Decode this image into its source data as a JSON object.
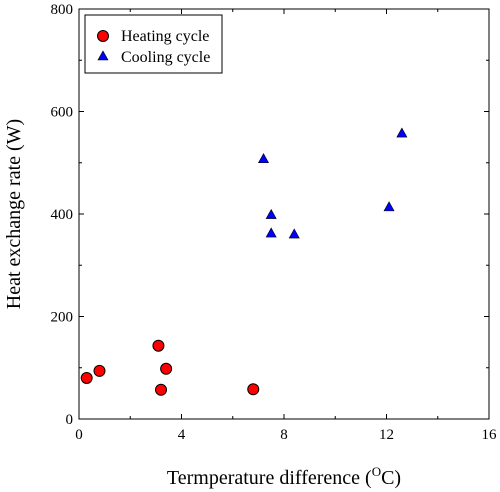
{
  "chart_data": {
    "type": "scatter",
    "xlabel_main": "Termperature difference (",
    "xlabel_sup": "O",
    "xlabel_unit": "C)",
    "ylabel": "Heat exchange rate (W)",
    "xlim": [
      0,
      16
    ],
    "ylim": [
      0,
      800
    ],
    "x_ticks": [
      0,
      4,
      8,
      12,
      16
    ],
    "y_ticks": [
      0,
      200,
      400,
      600,
      800
    ],
    "x_minor_ticks": [
      2,
      6,
      10,
      14
    ],
    "y_minor_ticks": [
      100,
      300,
      500,
      700
    ],
    "grid": false,
    "legend_position": "top-left",
    "series": [
      {
        "name": "Heating cycle",
        "marker": "circle",
        "color": "#ff0000",
        "points": [
          {
            "x": 0.3,
            "y": 80
          },
          {
            "x": 0.8,
            "y": 94
          },
          {
            "x": 3.1,
            "y": 143
          },
          {
            "x": 3.4,
            "y": 98
          },
          {
            "x": 3.2,
            "y": 57
          },
          {
            "x": 6.8,
            "y": 58
          }
        ]
      },
      {
        "name": "Cooling cycle",
        "marker": "triangle",
        "color": "#0000ff",
        "points": [
          {
            "x": 7.2,
            "y": 508
          },
          {
            "x": 7.5,
            "y": 399
          },
          {
            "x": 7.5,
            "y": 363
          },
          {
            "x": 8.4,
            "y": 361
          },
          {
            "x": 12.1,
            "y": 414
          },
          {
            "x": 12.6,
            "y": 558
          }
        ]
      }
    ]
  }
}
